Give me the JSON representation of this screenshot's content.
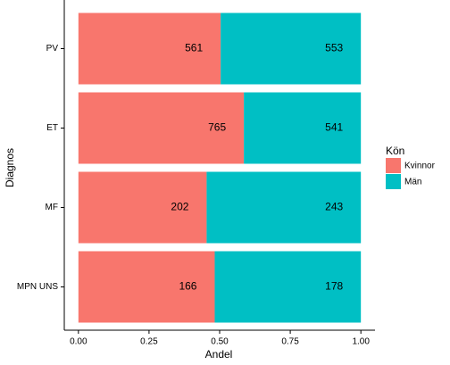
{
  "chart_data": {
    "type": "bar",
    "orientation": "horizontal",
    "stacking": "normalize",
    "x_label": "Andel",
    "y_label": "Diagnos",
    "legend_title": "Kön",
    "categories": [
      "PV",
      "ET",
      "MF",
      "MPN UNS"
    ],
    "series": [
      {
        "name": "Kvinnor",
        "color": "#F8766D",
        "values": [
          561,
          765,
          202,
          166
        ]
      },
      {
        "name": "Män",
        "color": "#00BFC4",
        "values": [
          553,
          541,
          243,
          178
        ]
      }
    ],
    "xlim": [
      -0.05,
      1.05
    ],
    "xticks": [
      {
        "value": 0,
        "label": "0.00"
      },
      0.25,
      {
        "value": 0.5,
        "label": "0.50"
      },
      0.75,
      {
        "value": 1,
        "label": "1.00"
      }
    ],
    "grid": false,
    "legend_position": "right"
  }
}
